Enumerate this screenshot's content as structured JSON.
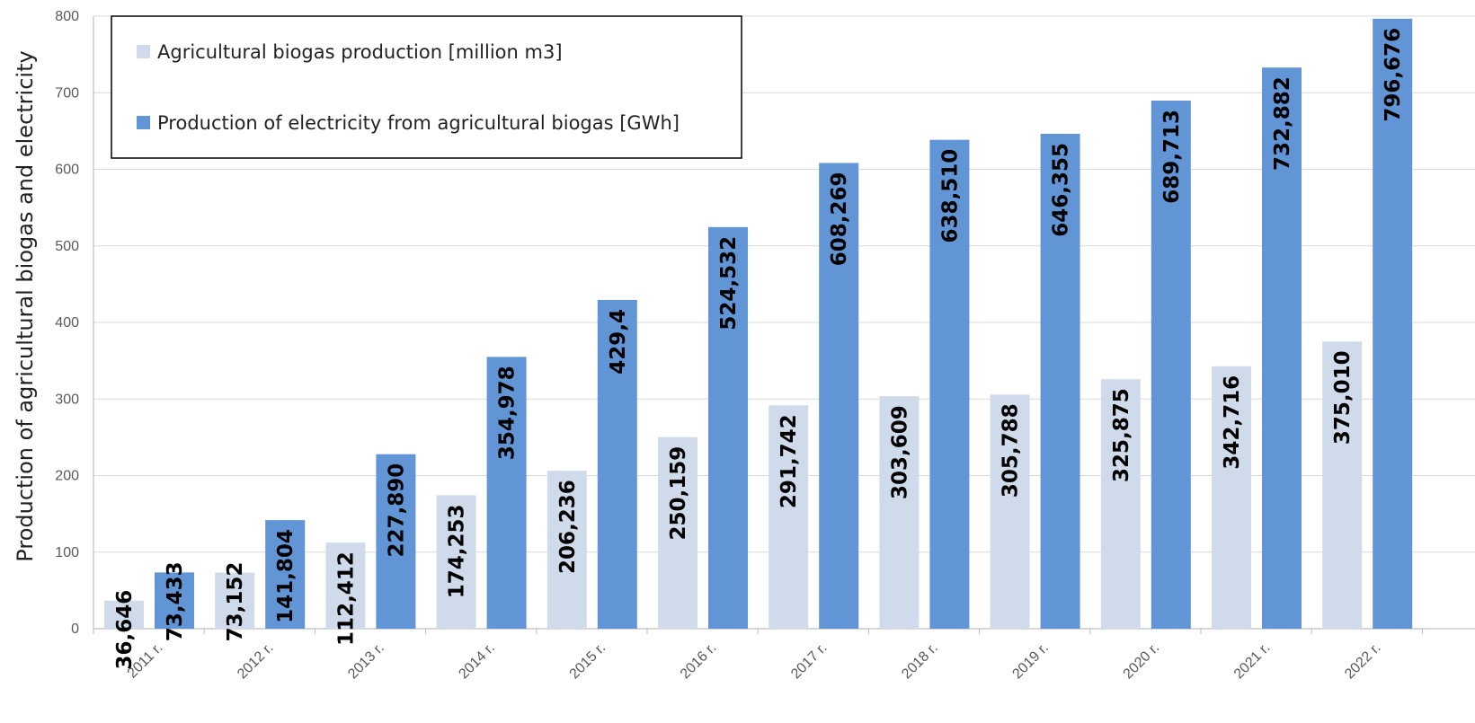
{
  "chart_data": {
    "type": "bar",
    "title": "",
    "xlabel": "",
    "ylabel": "Production of agricultural biogas and electricity",
    "ylim": [
      0,
      800
    ],
    "yticks": [
      0,
      100,
      200,
      300,
      400,
      500,
      600,
      700,
      800
    ],
    "grid": true,
    "legend_position": "top-left",
    "categories": [
      "2011 r.",
      "2012 r.",
      "2013 r.",
      "2014 r.",
      "2015 r.",
      "2016 r.",
      "2017 r.",
      "2018 r.",
      "2019 r.",
      "2020 r.",
      "2021 r.",
      "2022 r."
    ],
    "series": [
      {
        "name": "Agricultural biogas production [million m3]",
        "color": "#cfdbeb",
        "values": [
          36.646,
          73.152,
          112.412,
          174.253,
          206.236,
          250.159,
          291.742,
          303.609,
          305.788,
          325.875,
          342.716,
          375.01
        ],
        "labels": [
          "36,646",
          "73,152",
          "112,412",
          "174,253",
          "206,236",
          "250,159",
          "291,742",
          "303,609",
          "305,788",
          "325,875",
          "342,716",
          "375,010"
        ]
      },
      {
        "name": "Production of electricity from agricultural biogas [GWh]",
        "color": "#6195d5",
        "values": [
          73.433,
          141.804,
          227.89,
          354.978,
          429.4,
          524.532,
          608.269,
          638.51,
          646.355,
          689.713,
          732.882,
          796.676
        ],
        "labels": [
          "73,433",
          "141,804",
          "227,890",
          "354,978",
          "429,4",
          "524,532",
          "608,269",
          "638,510",
          "646,355",
          "689,713",
          "732,882",
          "796,676"
        ]
      }
    ]
  }
}
